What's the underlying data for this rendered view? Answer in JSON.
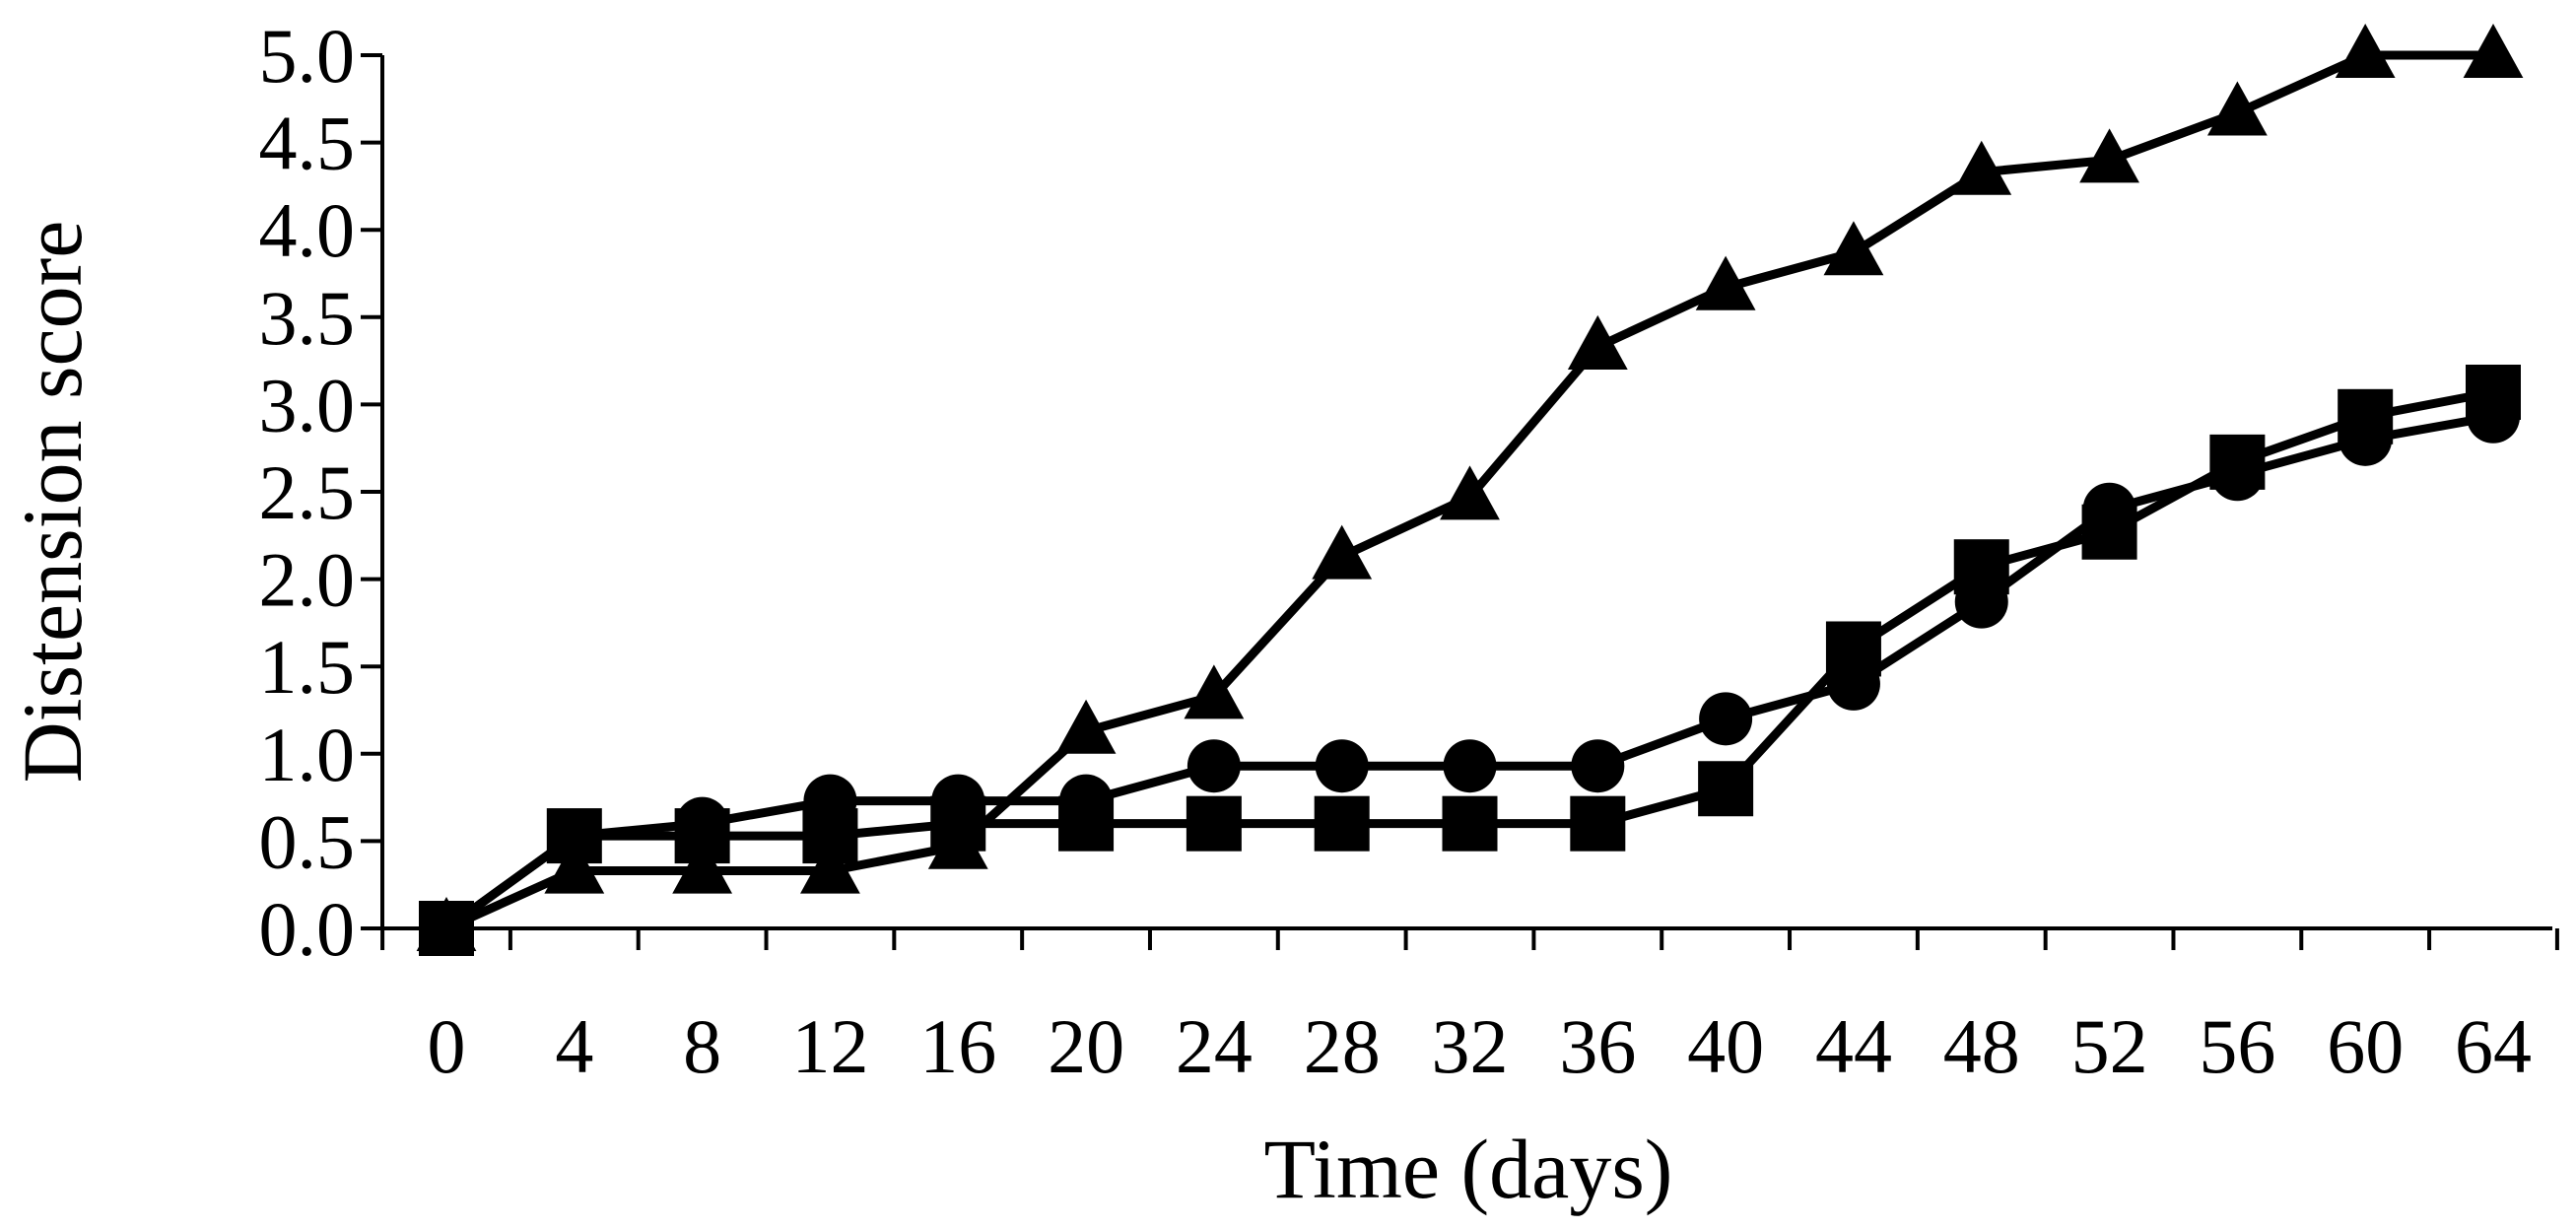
{
  "chart_data": {
    "type": "line",
    "title": "",
    "xlabel": "Time (days)",
    "ylabel": "Distension score",
    "x": [
      0,
      4,
      8,
      12,
      16,
      20,
      24,
      28,
      32,
      36,
      40,
      44,
      48,
      52,
      56,
      60,
      64
    ],
    "x_tick_labels": [
      "0",
      "4",
      "8",
      "12",
      "16",
      "20",
      "24",
      "28",
      "32",
      "36",
      "40",
      "44",
      "48",
      "52",
      "56",
      "60",
      "64"
    ],
    "y_tick_labels": [
      "0.0",
      "0.5",
      "1.0",
      "1.5",
      "2.0",
      "2.5",
      "3.0",
      "3.5",
      "4.0",
      "4.5",
      "5.0"
    ],
    "ylim": [
      0,
      5
    ],
    "grid": false,
    "legend": "none",
    "series": [
      {
        "marker": "triangle",
        "color": "#000000",
        "values": [
          0,
          0.33,
          0.33,
          0.33,
          0.47,
          1.13,
          1.33,
          2.13,
          2.47,
          3.33,
          3.67,
          3.87,
          4.33,
          4.4,
          4.67,
          5.0,
          5.0
        ]
      },
      {
        "marker": "circle",
        "color": "#000000",
        "values": [
          0,
          0.53,
          0.6,
          0.73,
          0.73,
          0.73,
          0.93,
          0.93,
          0.93,
          0.93,
          1.2,
          1.4,
          1.87,
          2.4,
          2.6,
          2.8,
          2.93
        ]
      },
      {
        "marker": "square",
        "color": "#000000",
        "values": [
          0,
          0.53,
          0.53,
          0.53,
          0.6,
          0.6,
          0.6,
          0.6,
          0.6,
          0.6,
          0.8,
          1.6,
          2.07,
          2.27,
          2.67,
          2.93,
          3.07
        ]
      }
    ]
  }
}
